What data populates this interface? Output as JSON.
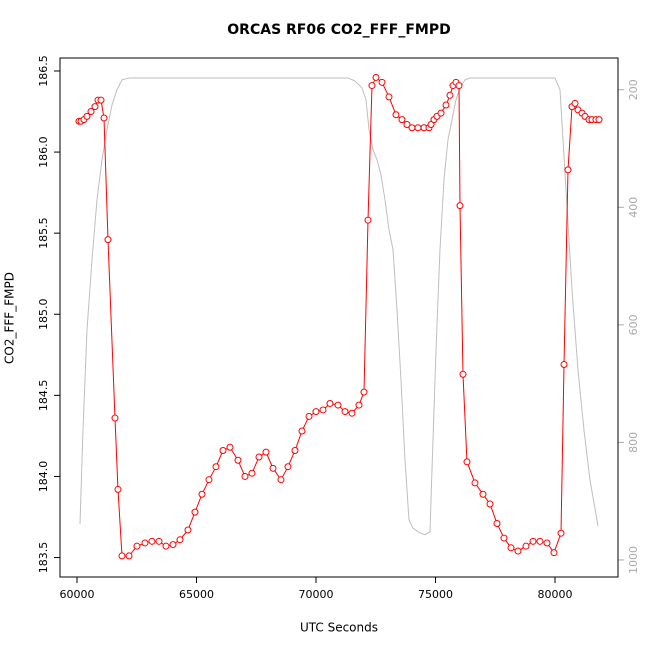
{
  "chart_data": {
    "type": "line",
    "title": "ORCAS RF06 CO2_FFF_FMPD",
    "xlabel": "UTC Seconds",
    "ylabel": "CO2_FFF_FMPD",
    "xlim": [
      59289,
      82636
    ],
    "ylim": [
      183.38,
      186.58
    ],
    "y2lim": [
      1029,
      146
    ],
    "xticks": [
      60000,
      65000,
      70000,
      75000,
      80000
    ],
    "yticks": [
      183.5,
      {
        "value": 184,
        "label": "184.0"
      },
      184.5,
      {
        "value": 185,
        "label": "185.0"
      },
      185.5,
      {
        "value": 186,
        "label": "186.0"
      },
      186.5
    ],
    "y2ticks": [
      200,
      400,
      600,
      800,
      1000
    ],
    "series": [
      {
        "color": "#bebebe",
        "axis": "y2",
        "markers": false,
        "x": [
          60126,
          60251,
          60418,
          60628,
          60837,
          61046,
          61255,
          61464,
          61674,
          61883,
          62218,
          65146,
          69330,
          71339,
          71632,
          71925,
          72092,
          72218,
          72385,
          72552,
          72720,
          72887,
          73054,
          73222,
          73389,
          73556,
          73724,
          73891,
          74058,
          74351,
          74560,
          74770,
          74853,
          75021,
          75188,
          75355,
          75523,
          75690,
          75857,
          76025,
          76234,
          76443,
          80000,
          80209,
          80460,
          80711,
          80962,
          81213,
          81464,
          81799
        ],
        "values": [
          939,
          779,
          609,
          489,
          387,
          319,
          268,
          226,
          200,
          183,
          180,
          180,
          180,
          180,
          185,
          197,
          217,
          268,
          302,
          319,
          345,
          387,
          438,
          472,
          574,
          694,
          830,
          932,
          946,
          954,
          957,
          952,
          847,
          643,
          472,
          353,
          285,
          251,
          217,
          197,
          183,
          180,
          180,
          200,
          370,
          540,
          677,
          779,
          864,
          942
        ]
      },
      {
        "color": "#ff0000",
        "markers": true,
        "x": [
          60084,
          60167,
          60293,
          60418,
          60586,
          60753,
          60879,
          61004,
          61130,
          61297,
          61590,
          61715,
          61883,
          62176,
          62510,
          62845,
          63138,
          63431,
          63724,
          64017,
          64310,
          64644,
          64937,
          65230,
          65523,
          65816,
          66109,
          66402,
          66736,
          67029,
          67322,
          67615,
          67908,
          68201,
          68535,
          68828,
          69121,
          69414,
          69707,
          70000,
          70293,
          70586,
          70921,
          71214,
          71506,
          71799,
          72008,
          72176,
          72343,
          72510,
          72761,
          73054,
          73347,
          73598,
          73807,
          74016,
          74267,
          74518,
          74728,
          74812,
          74937,
          75062,
          75230,
          75439,
          75606,
          75732,
          75857,
          75983,
          76025,
          76150,
          76318,
          76652,
          76987,
          77280,
          77573,
          77866,
          78159,
          78452,
          78787,
          79080,
          79372,
          79665,
          79958,
          80251,
          80377,
          80544,
          80711,
          80837,
          80962,
          81130,
          81255,
          81422,
          81548,
          81715,
          81841
        ],
        "values": [
          186.19,
          186.19,
          186.2,
          186.22,
          186.25,
          186.28,
          186.32,
          186.32,
          186.21,
          185.46,
          184.36,
          183.92,
          183.51,
          183.51,
          183.57,
          183.59,
          183.6,
          183.6,
          183.57,
          183.58,
          183.61,
          183.67,
          183.78,
          183.89,
          183.98,
          184.06,
          184.16,
          184.18,
          184.1,
          184.0,
          184.02,
          184.12,
          184.15,
          184.05,
          183.98,
          184.06,
          184.16,
          184.28,
          184.37,
          184.4,
          184.41,
          184.45,
          184.44,
          184.4,
          184.39,
          184.44,
          184.52,
          185.58,
          186.41,
          186.46,
          186.43,
          186.34,
          186.23,
          186.2,
          186.17,
          186.15,
          186.15,
          186.15,
          186.15,
          186.17,
          186.2,
          186.22,
          186.24,
          186.29,
          186.35,
          186.41,
          186.43,
          186.41,
          185.67,
          184.63,
          184.09,
          183.96,
          183.89,
          183.83,
          183.71,
          183.62,
          183.56,
          183.54,
          183.57,
          183.6,
          183.6,
          183.59,
          183.53,
          183.65,
          184.69,
          185.89,
          186.28,
          186.3,
          186.26,
          186.24,
          186.22,
          186.2,
          186.2,
          186.2,
          186.2
        ]
      }
    ]
  }
}
